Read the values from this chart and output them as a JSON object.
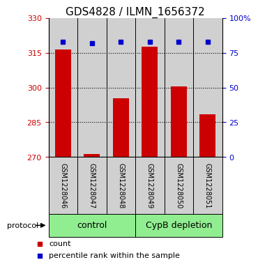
{
  "title": "GDS4828 / ILMN_1656372",
  "samples": [
    "GSM1228046",
    "GSM1228047",
    "GSM1228048",
    "GSM1228049",
    "GSM1228050",
    "GSM1228051"
  ],
  "bar_values": [
    316.5,
    271.2,
    295.5,
    317.5,
    300.5,
    288.5
  ],
  "percentile_right": [
    83,
    82,
    83,
    83,
    83,
    83
  ],
  "ylim_left": [
    270,
    330
  ],
  "ylim_right": [
    0,
    100
  ],
  "yticks_left": [
    270,
    285,
    300,
    315,
    330
  ],
  "yticks_right": [
    0,
    25,
    50,
    75,
    100
  ],
  "ytick_labels_left": [
    "270",
    "285",
    "300",
    "315",
    "330"
  ],
  "ytick_labels_right": [
    "0",
    "25",
    "50",
    "75",
    "100%"
  ],
  "bar_color": "#cc0000",
  "dot_color": "#0000cc",
  "control_label": "control",
  "cypb_label": "CypB depletion",
  "protocol_label": "protocol",
  "legend_count": "count",
  "legend_percentile": "percentile rank within the sample",
  "bar_bg_color": "#d0d0d0",
  "green_bg": "#90ee90",
  "grid_dotted": [
    285,
    300,
    315
  ],
  "title_fontsize": 11,
  "tick_fontsize": 8,
  "sample_fontsize": 7,
  "legend_fontsize": 8,
  "proto_fontsize": 9
}
